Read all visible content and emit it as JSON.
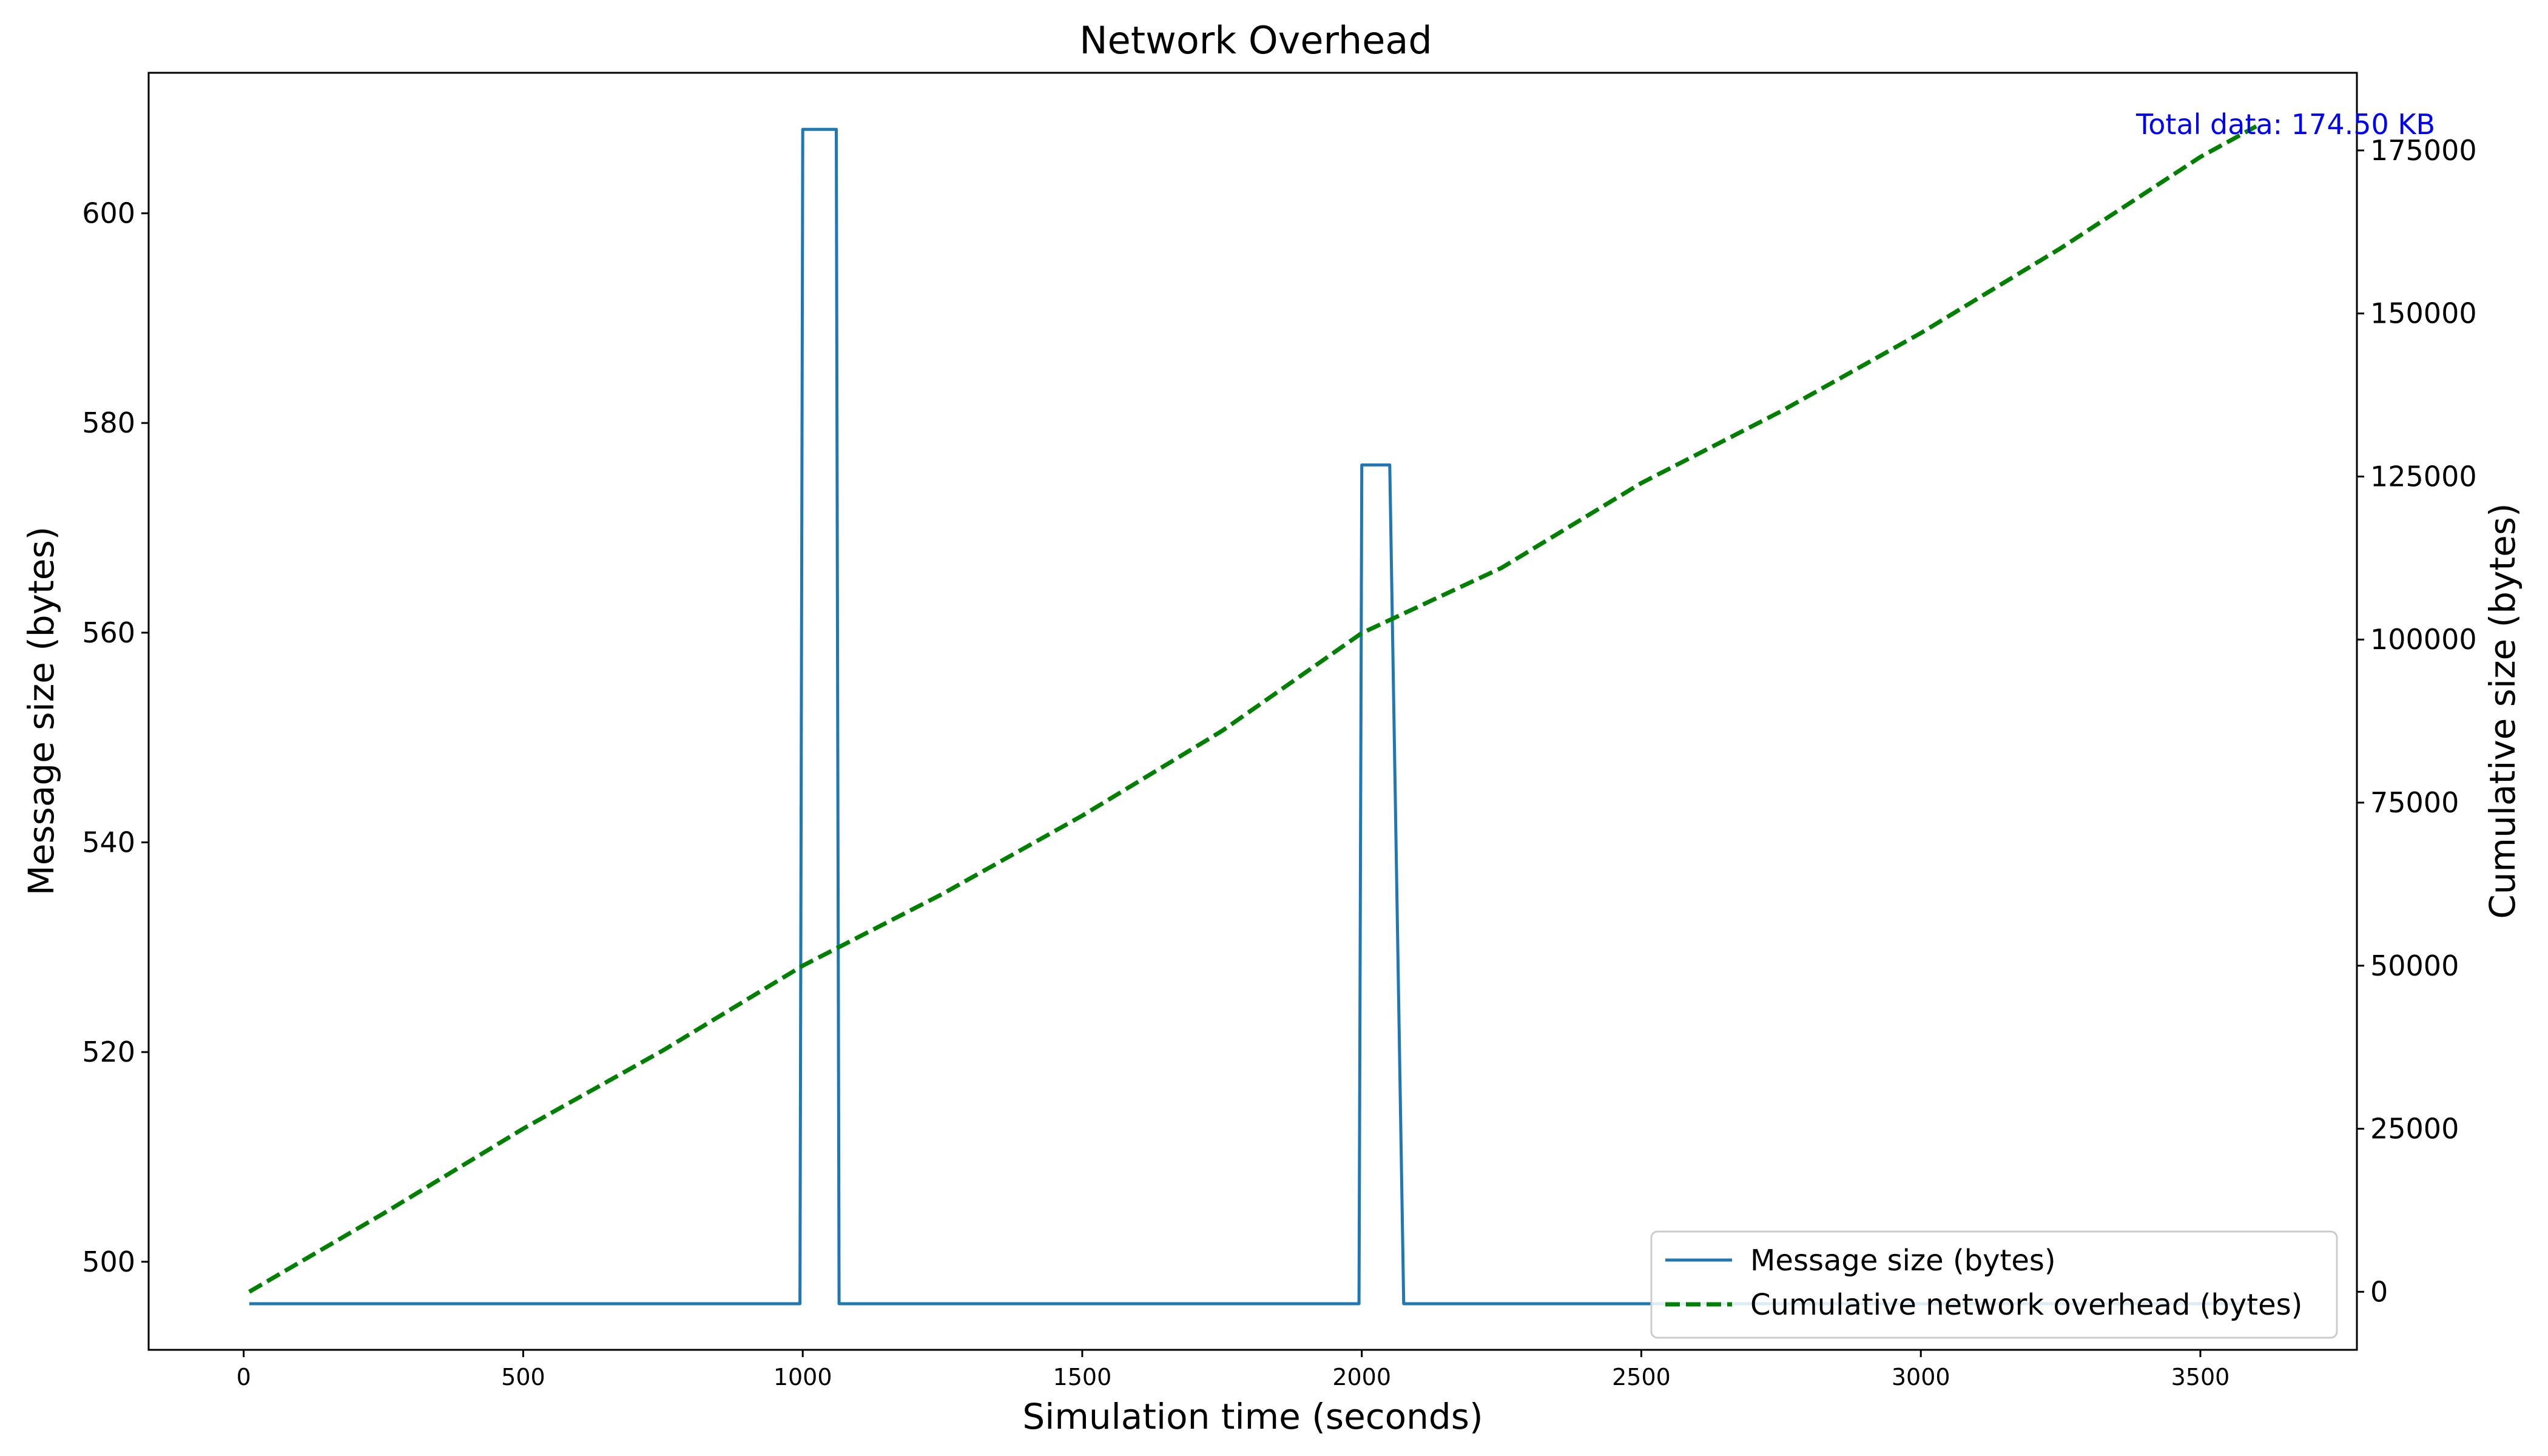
{
  "chart_data": {
    "type": "line",
    "title": "Network Overhead",
    "xlabel": "Simulation time (seconds)",
    "ylabel_left": "Message size (bytes)",
    "ylabel_right": "Cumulative size (bytes)",
    "xlim": [
      -170,
      3780
    ],
    "ylim_left": [
      491.6,
      613.4
    ],
    "ylim_right": [
      -8900,
      186900
    ],
    "x_ticks": [
      0,
      500,
      1000,
      1500,
      2000,
      2500,
      3000,
      3500
    ],
    "y_left_ticks": [
      500,
      520,
      540,
      560,
      580,
      600
    ],
    "y_right_ticks": [
      0,
      25000,
      50000,
      75000,
      100000,
      125000,
      150000,
      175000
    ],
    "grid": false,
    "legend_position": "lower-right",
    "annotation": {
      "text": "Total data: 174.50 KB",
      "color": "#0000ff",
      "position": "top-right"
    },
    "colors": {
      "message": "#1f77b4",
      "cumulative": "#008000"
    },
    "series": [
      {
        "name": "Message size (bytes)",
        "axis": "left",
        "style": "solid",
        "x": [
          10,
          995,
          1000,
          1060,
          1065,
          1995,
          2000,
          2050,
          2075,
          3600
        ],
        "y": [
          496,
          496,
          608,
          608,
          496,
          496,
          576,
          576,
          496,
          496
        ]
      },
      {
        "name": "Cumulative network overhead (bytes)",
        "axis": "right",
        "style": "dashed",
        "x": [
          10,
          250,
          500,
          750,
          1000,
          1250,
          1500,
          1750,
          2000,
          2250,
          2500,
          2750,
          3000,
          3250,
          3500,
          3600
        ],
        "y": [
          0,
          12000,
          25000,
          37000,
          50000,
          61000,
          73000,
          86000,
          101000,
          111000,
          124000,
          135000,
          147000,
          160000,
          174000,
          178700
        ]
      }
    ]
  }
}
